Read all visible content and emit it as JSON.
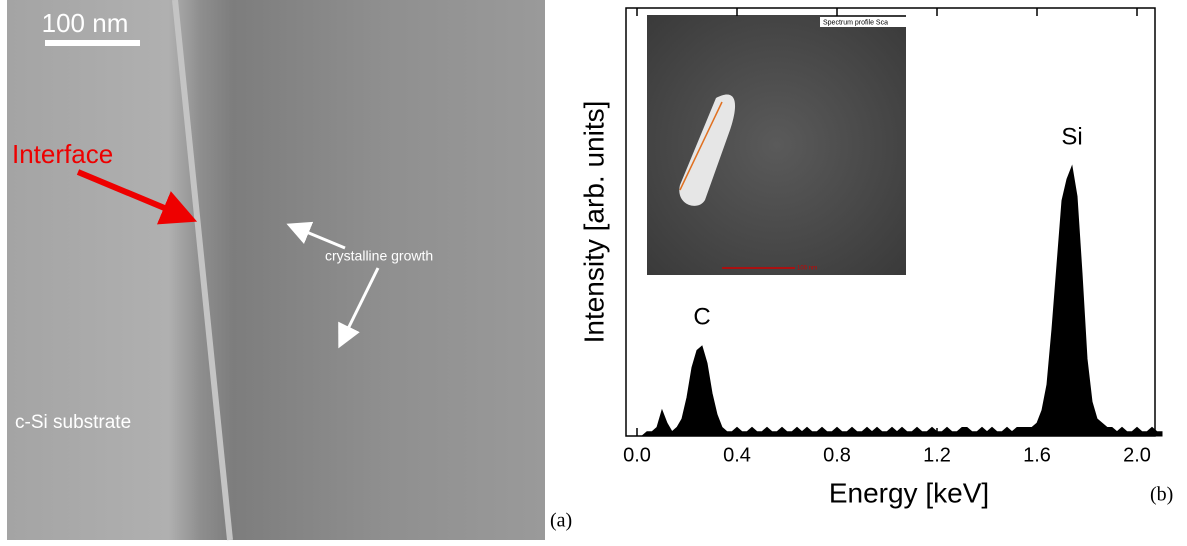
{
  "image_panel": {
    "scale_bar": "100 nm",
    "interface_label": "Interface",
    "growth_label": "crystalline growth",
    "substrate_label": "c-Si substrate",
    "panel_label": "(a)"
  },
  "inset": {
    "header": "Spectrum profile Sca",
    "scale_bar": "100 nm"
  },
  "chart_data": {
    "type": "area",
    "color": "#000000",
    "x_label": "Energy [keV]",
    "y_label": "Intensity [arb. units]",
    "panel_label": "(b)",
    "annotations": [
      {
        "text": "C",
        "x": 0.26,
        "y": 21
      },
      {
        "text": "Si",
        "x": 1.74,
        "y": 63
      }
    ],
    "xlim": [
      -0.044,
      2.072
    ],
    "ylim": [
      0,
      100
    ],
    "xticks": [
      {
        "value": 0,
        "label": "0.0"
      },
      0.4,
      0.8,
      1.2,
      1.6,
      {
        "value": 2,
        "label": "2.0"
      }
    ],
    "x": [
      0,
      0.02,
      0.04,
      0.06,
      0.08,
      0.1,
      0.12,
      0.14,
      0.16,
      0.18,
      0.2,
      0.22,
      0.24,
      0.26,
      0.28,
      0.3,
      0.32,
      0.34,
      0.36,
      0.38,
      0.4,
      0.42,
      0.44,
      0.46,
      0.48,
      0.5,
      0.52,
      0.54,
      0.56,
      0.58,
      0.6,
      0.62,
      0.64,
      0.66,
      0.68,
      0.7,
      0.72,
      0.74,
      0.76,
      0.78,
      0.8,
      0.82,
      0.84,
      0.86,
      0.88,
      0.9,
      0.92,
      0.94,
      0.96,
      0.98,
      1.0,
      1.02,
      1.04,
      1.06,
      1.08,
      1.1,
      1.12,
      1.14,
      1.16,
      1.18,
      1.2,
      1.22,
      1.24,
      1.26,
      1.28,
      1.3,
      1.32,
      1.34,
      1.36,
      1.38,
      1.4,
      1.42,
      1.44,
      1.46,
      1.48,
      1.5,
      1.52,
      1.54,
      1.56,
      1.58,
      1.6,
      1.62,
      1.64,
      1.66,
      1.68,
      1.7,
      1.72,
      1.74,
      1.76,
      1.78,
      1.8,
      1.82,
      1.84,
      1.86,
      1.88,
      1.9,
      1.92,
      1.94,
      1.96,
      1.98,
      2.0,
      2.02,
      2.04,
      2.06,
      2.08,
      2.1
    ],
    "values": [
      0,
      0,
      1,
      1,
      2,
      6,
      3,
      1,
      2,
      4,
      9,
      16,
      20,
      21,
      17,
      10,
      5,
      2,
      1,
      1,
      2,
      1,
      1,
      2,
      1,
      1,
      2,
      1,
      1,
      2,
      1,
      1,
      2,
      1,
      2,
      1,
      1,
      2,
      1,
      1,
      2,
      1,
      1,
      2,
      1,
      1,
      2,
      1,
      2,
      1,
      1,
      2,
      1,
      2,
      1,
      1,
      2,
      1,
      1,
      2,
      1,
      1,
      2,
      1,
      1,
      2,
      2,
      1,
      1,
      2,
      1,
      2,
      1,
      1,
      2,
      1,
      2,
      2,
      2,
      2,
      3,
      6,
      12,
      25,
      40,
      55,
      60,
      63,
      56,
      38,
      18,
      8,
      4,
      3,
      2,
      2,
      1,
      2,
      1,
      1,
      2,
      1,
      1,
      2,
      1,
      1
    ]
  }
}
